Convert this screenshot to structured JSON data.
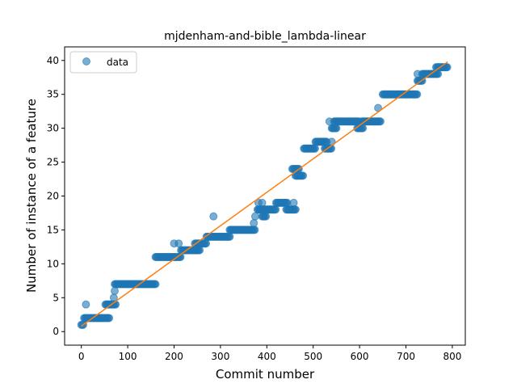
{
  "chart_data": {
    "type": "scatter",
    "title": "mjdenham-and-bible_lambda-linear",
    "xlabel": "Commit number",
    "ylabel": "Number of instance of a feature",
    "xlim": [
      -36,
      828
    ],
    "ylim": [
      -2,
      42
    ],
    "xticks": [
      0,
      100,
      200,
      300,
      400,
      500,
      600,
      700,
      800
    ],
    "yticks": [
      0,
      5,
      10,
      15,
      20,
      25,
      30,
      35,
      40
    ],
    "legend": {
      "position": "upper left",
      "entries": [
        "data"
      ]
    },
    "colors": {
      "data": "#1f77b4",
      "fit": "#ff7f0e"
    },
    "series": [
      {
        "name": "data",
        "kind": "scatter",
        "segments": [
          {
            "x": [
              0,
              5
            ],
            "y": 1
          },
          {
            "x": [
              6,
              60
            ],
            "y": 2
          },
          {
            "x": [
              52,
              75
            ],
            "y": 4
          },
          {
            "x": [
              72,
              160
            ],
            "y": 7
          },
          {
            "x": [
              160,
              215
            ],
            "y": 11
          },
          {
            "x": [
              215,
              255
            ],
            "y": 12
          },
          {
            "x": [
              245,
              270
            ],
            "y": 13
          },
          {
            "x": [
              270,
              320
            ],
            "y": 14
          },
          {
            "x": [
              320,
              375
            ],
            "y": 15
          },
          {
            "x": [
              380,
              395
            ],
            "y": 18
          },
          {
            "x": [
              390,
              398
            ],
            "y": 17
          },
          {
            "x": [
              395,
              420
            ],
            "y": 18
          },
          {
            "x": [
              420,
              445
            ],
            "y": 19
          },
          {
            "x": [
              442,
              462
            ],
            "y": 18
          },
          {
            "x": [
              455,
              470
            ],
            "y": 24
          },
          {
            "x": [
              462,
              478
            ],
            "y": 23
          },
          {
            "x": [
              480,
              505
            ],
            "y": 27
          },
          {
            "x": [
              505,
              530
            ],
            "y": 28
          },
          {
            "x": [
              525,
              540
            ],
            "y": 27
          },
          {
            "x": [
              540,
              550
            ],
            "y": 30
          },
          {
            "x": [
              545,
              600
            ],
            "y": 31
          },
          {
            "x": [
              595,
              608
            ],
            "y": 30
          },
          {
            "x": [
              605,
              645
            ],
            "y": 31
          },
          {
            "x": [
              650,
              725
            ],
            "y": 35
          },
          {
            "x": [
              725,
              735
            ],
            "y": 37
          },
          {
            "x": [
              735,
              770
            ],
            "y": 38
          },
          {
            "x": [
              765,
              790
            ],
            "y": 39
          }
        ],
        "points": [
          {
            "x": 10,
            "y": 4
          },
          {
            "x": 70,
            "y": 5
          },
          {
            "x": 72,
            "y": 6
          },
          {
            "x": 200,
            "y": 13
          },
          {
            "x": 210,
            "y": 13
          },
          {
            "x": 285,
            "y": 17
          },
          {
            "x": 372,
            "y": 16
          },
          {
            "x": 375,
            "y": 17
          },
          {
            "x": 382,
            "y": 19
          },
          {
            "x": 390,
            "y": 19
          },
          {
            "x": 458,
            "y": 19
          },
          {
            "x": 535,
            "y": 31
          },
          {
            "x": 540,
            "y": 28
          },
          {
            "x": 640,
            "y": 33
          },
          {
            "x": 725,
            "y": 38
          }
        ]
      },
      {
        "name": "",
        "kind": "line",
        "x": [
          0,
          790
        ],
        "y": [
          0.8,
          39.8
        ]
      }
    ]
  }
}
